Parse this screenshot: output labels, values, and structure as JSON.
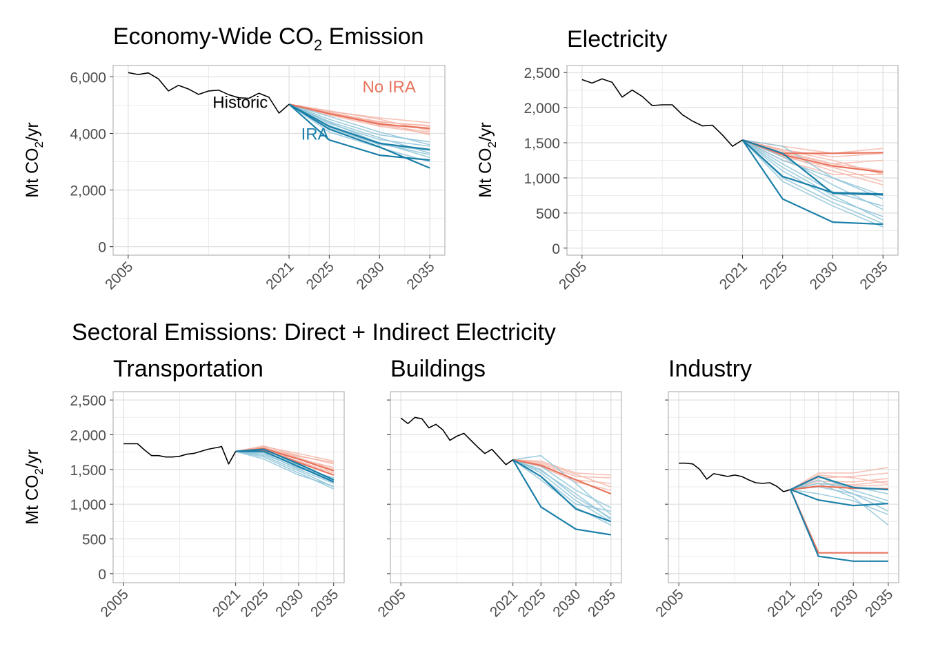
{
  "section_title": "Sectoral Emissions: Direct + Indirect Electricity",
  "colors": {
    "historic": "#000000",
    "ira": "#1a7fa8",
    "ira_light": "#8ec4d8",
    "noira": "#e8735c",
    "noira_light": "#f4b3a5",
    "grid": "#dedede",
    "panel_border": "#b3b3b3"
  },
  "chart_data": [
    {
      "type": "line",
      "title": "Economy-Wide CO",
      "title_subscript": "2",
      "title_suffix": " Emission",
      "ylabel_prefix": "Mt CO",
      "ylabel_subscript": "2",
      "ylabel_suffix": "/yr",
      "x_ticks": [
        2005,
        2021,
        2025,
        2030,
        2035
      ],
      "x_tick_labels": [
        "2005",
        "2021",
        "2025",
        "2030",
        "2035"
      ],
      "xlim": [
        2005,
        2035
      ],
      "ylim": [
        0,
        6000
      ],
      "y_ticks": [
        0,
        2000,
        4000,
        6000
      ],
      "y_tick_labels": [
        "0",
        "2,000",
        "4,000",
        "6,000"
      ],
      "grid": true,
      "annotations": [
        {
          "text": "No IRA",
          "series": "noira",
          "x": 2028.3,
          "y": 5450
        },
        {
          "text": "Historic",
          "series": "historic",
          "x": 2013.4,
          "y": 4900
        },
        {
          "text": "IRA",
          "series": "ira",
          "x": 2022.2,
          "y": 3780
        }
      ],
      "historic": {
        "x": [
          2005,
          2006,
          2007,
          2008,
          2009,
          2010,
          2011,
          2012,
          2013,
          2014,
          2015,
          2016,
          2017,
          2018,
          2019,
          2020,
          2021
        ],
        "y": [
          6150,
          6080,
          6140,
          5930,
          5500,
          5700,
          5570,
          5380,
          5500,
          5530,
          5370,
          5260,
          5240,
          5420,
          5280,
          4720,
          5030
        ]
      },
      "scenario_x": [
        2021,
        2025,
        2030,
        2035
      ],
      "noira": [
        [
          5030,
          4780,
          4550,
          4380
        ],
        [
          5030,
          4720,
          4420,
          4250
        ],
        [
          5030,
          4680,
          4350,
          4150
        ],
        [
          5030,
          4750,
          4400,
          4280
        ],
        [
          5030,
          4700,
          4300,
          4050
        ],
        [
          5030,
          4650,
          4250,
          4000
        ],
        [
          5030,
          4720,
          4380,
          3950
        ],
        [
          5030,
          4800,
          4500,
          4100
        ]
      ],
      "noira_bold": [
        5030,
        4700,
        4330,
        4180
      ],
      "ira": [
        [
          5030,
          4420,
          3850,
          3300
        ],
        [
          5030,
          4280,
          3680,
          3150
        ],
        [
          5030,
          4350,
          3780,
          3550
        ],
        [
          5030,
          4200,
          3600,
          3400
        ],
        [
          5030,
          4500,
          3950,
          3700
        ],
        [
          5030,
          4050,
          3500,
          3000
        ],
        [
          5030,
          4400,
          3650,
          3250
        ],
        [
          5030,
          4600,
          4050,
          3600
        ]
      ],
      "ira_bold": [
        [
          5030,
          3770,
          3230,
          3060
        ],
        [
          5030,
          4250,
          3650,
          3430
        ],
        [
          5030,
          4150,
          3520,
          2780
        ]
      ]
    },
    {
      "type": "line",
      "title": "Electricity",
      "ylabel_prefix": "Mt CO",
      "ylabel_subscript": "2",
      "ylabel_suffix": "/yr",
      "x_ticks": [
        2005,
        2021,
        2025,
        2030,
        2035
      ],
      "x_tick_labels": [
        "2005",
        "2021",
        "2025",
        "2030",
        "2035"
      ],
      "xlim": [
        2005,
        2035
      ],
      "ylim": [
        0,
        2500
      ],
      "y_ticks": [
        0,
        500,
        1000,
        1500,
        2000,
        2500
      ],
      "y_tick_labels": [
        "0",
        "500",
        "1,000",
        "1,500",
        "2,000",
        "2,500"
      ],
      "grid": true,
      "historic": {
        "x": [
          2005,
          2006,
          2007,
          2008,
          2009,
          2010,
          2011,
          2012,
          2013,
          2014,
          2015,
          2016,
          2017,
          2018,
          2019,
          2020,
          2021
        ],
        "y": [
          2400,
          2350,
          2410,
          2360,
          2150,
          2250,
          2160,
          2030,
          2040,
          2040,
          1900,
          1810,
          1740,
          1750,
          1610,
          1450,
          1540
        ]
      },
      "scenario_x": [
        2021,
        2025,
        2030,
        2035
      ],
      "noira": [
        [
          1540,
          1450,
          1350,
          1420
        ],
        [
          1540,
          1400,
          1300,
          1350
        ],
        [
          1540,
          1350,
          1200,
          1100
        ],
        [
          1540,
          1300,
          1150,
          950
        ],
        [
          1540,
          1400,
          1250,
          1050
        ],
        [
          1540,
          1320,
          1100,
          900
        ],
        [
          1540,
          1250,
          1050,
          1050
        ],
        [
          1540,
          1380,
          1200,
          1250
        ]
      ],
      "noira_bold": [
        [
          1540,
          1350,
          1350,
          1360
        ],
        [
          1540,
          1330,
          1170,
          1080
        ]
      ],
      "ira": [
        [
          1540,
          1100,
          700,
          450
        ],
        [
          1540,
          1200,
          800,
          600
        ],
        [
          1540,
          1300,
          900,
          550
        ],
        [
          1540,
          1000,
          650,
          350
        ],
        [
          1540,
          1150,
          750,
          400
        ],
        [
          1540,
          1250,
          1000,
          700
        ],
        [
          1540,
          1450,
          1000,
          750
        ],
        [
          1540,
          950,
          600,
          300
        ]
      ],
      "ira_bold": [
        [
          1540,
          700,
          370,
          340
        ],
        [
          1540,
          1020,
          790,
          770
        ],
        [
          1540,
          1350,
          780,
          760
        ]
      ]
    },
    {
      "type": "line",
      "title": "Transportation",
      "ylabel_prefix": "Mt CO",
      "ylabel_subscript": "2",
      "ylabel_suffix": "/yr",
      "x_ticks": [
        2005,
        2021,
        2025,
        2030,
        2035
      ],
      "x_tick_labels": [
        "2005",
        "2021",
        "2025",
        "2030",
        "2035"
      ],
      "xlim": [
        2005,
        2035
      ],
      "ylim": [
        0,
        2500
      ],
      "y_ticks": [
        0,
        500,
        1000,
        1500,
        2000,
        2500
      ],
      "y_tick_labels": [
        "0",
        "500",
        "1,000",
        "1,500",
        "2,000",
        "2,500"
      ],
      "grid": true,
      "historic": {
        "x": [
          2005,
          2006,
          2007,
          2008,
          2009,
          2010,
          2011,
          2012,
          2013,
          2014,
          2015,
          2016,
          2017,
          2018,
          2019,
          2020,
          2021
        ],
        "y": [
          1870,
          1870,
          1870,
          1780,
          1700,
          1700,
          1680,
          1680,
          1690,
          1720,
          1730,
          1760,
          1790,
          1810,
          1830,
          1580,
          1760
        ]
      },
      "scenario_x": [
        2021,
        2025,
        2030,
        2035
      ],
      "noira": [
        [
          1760,
          1830,
          1730,
          1620
        ],
        [
          1760,
          1810,
          1690,
          1600
        ],
        [
          1760,
          1780,
          1650,
          1530
        ],
        [
          1760,
          1840,
          1700,
          1580
        ],
        [
          1760,
          1790,
          1620,
          1450
        ],
        [
          1760,
          1820,
          1670,
          1500
        ]
      ],
      "noira_bold": [
        [
          1760,
          1800,
          1650,
          1480
        ],
        [
          1760,
          1780,
          1600,
          1420
        ]
      ],
      "ira": [
        [
          1760,
          1700,
          1480,
          1250
        ],
        [
          1760,
          1680,
          1450,
          1220
        ],
        [
          1760,
          1740,
          1500,
          1300
        ],
        [
          1760,
          1720,
          1520,
          1380
        ],
        [
          1760,
          1650,
          1420,
          1260
        ],
        [
          1760,
          1760,
          1560,
          1340
        ]
      ],
      "ira_bold": [
        [
          1760,
          1790,
          1580,
          1350
        ],
        [
          1760,
          1760,
          1540,
          1320
        ]
      ]
    },
    {
      "type": "line",
      "title": "Buildings",
      "x_ticks": [
        2005,
        2021,
        2025,
        2030,
        2035
      ],
      "x_tick_labels": [
        "2005",
        "2021",
        "2025",
        "2030",
        "2035"
      ],
      "xlim": [
        2005,
        2035
      ],
      "ylim": [
        0,
        2500
      ],
      "y_ticks": [
        0,
        500,
        1000,
        1500,
        2000,
        2500
      ],
      "grid": true,
      "historic": {
        "x": [
          2005,
          2006,
          2007,
          2008,
          2009,
          2010,
          2011,
          2012,
          2013,
          2014,
          2015,
          2016,
          2017,
          2018,
          2019,
          2020,
          2021
        ],
        "y": [
          2240,
          2160,
          2250,
          2230,
          2100,
          2150,
          2070,
          1920,
          1980,
          2020,
          1920,
          1820,
          1730,
          1790,
          1680,
          1570,
          1640
        ]
      },
      "scenario_x": [
        2021,
        2025,
        2030,
        2035
      ],
      "noira": [
        [
          1640,
          1620,
          1450,
          1420
        ],
        [
          1640,
          1580,
          1400,
          1380
        ],
        [
          1640,
          1560,
          1350,
          1300
        ],
        [
          1640,
          1600,
          1430,
          1250
        ],
        [
          1640,
          1540,
          1320,
          1200
        ]
      ],
      "noira_bold": [
        [
          1640,
          1560,
          1350,
          1150
        ]
      ],
      "ira": [
        [
          1640,
          1500,
          1100,
          800
        ],
        [
          1640,
          1450,
          1050,
          750
        ],
        [
          1640,
          1400,
          1000,
          900
        ],
        [
          1640,
          1550,
          1200,
          950
        ],
        [
          1640,
          1700,
          1300,
          850
        ],
        [
          1640,
          1350,
          950,
          700
        ],
        [
          1640,
          1480,
          1150,
          780
        ]
      ],
      "ira_bold": [
        [
          1640,
          960,
          640,
          560
        ],
        [
          1640,
          1400,
          930,
          750
        ]
      ]
    },
    {
      "type": "line",
      "title": "Industry",
      "x_ticks": [
        2005,
        2021,
        2025,
        2030,
        2035
      ],
      "x_tick_labels": [
        "2005",
        "2021",
        "2025",
        "2030",
        "2035"
      ],
      "xlim": [
        2005,
        2035
      ],
      "ylim": [
        0,
        2500
      ],
      "y_ticks": [
        0,
        500,
        1000,
        1500,
        2000,
        2500
      ],
      "grid": true,
      "historic": {
        "x": [
          2005,
          2006,
          2007,
          2008,
          2009,
          2010,
          2011,
          2012,
          2013,
          2014,
          2015,
          2016,
          2017,
          2018,
          2019,
          2020,
          2021
        ],
        "y": [
          1590,
          1590,
          1580,
          1500,
          1360,
          1440,
          1420,
          1400,
          1420,
          1400,
          1350,
          1310,
          1300,
          1310,
          1260,
          1180,
          1210
        ]
      },
      "scenario_x": [
        2021,
        2025,
        2030,
        2035
      ],
      "noira": [
        [
          1210,
          1450,
          1450,
          1530
        ],
        [
          1210,
          1380,
          1400,
          1450
        ],
        [
          1210,
          1330,
          1320,
          1370
        ],
        [
          1210,
          1300,
          1280,
          1330
        ],
        [
          1210,
          1420,
          1380,
          1300
        ],
        [
          1210,
          1250,
          1260,
          1280
        ]
      ],
      "noira_bold": [
        [
          1210,
          300,
          300,
          300
        ],
        [
          1210,
          1260,
          1230,
          1220
        ]
      ],
      "ira": [
        [
          1210,
          1350,
          1150,
          900
        ],
        [
          1210,
          1300,
          1100,
          700
        ],
        [
          1210,
          1400,
          1200,
          1050
        ],
        [
          1210,
          1250,
          1150,
          1000
        ],
        [
          1210,
          1300,
          1250,
          1150
        ],
        [
          1210,
          1150,
          1050,
          850
        ]
      ],
      "ira_bold": [
        [
          1210,
          250,
          180,
          180
        ],
        [
          1210,
          1060,
          980,
          1010
        ],
        [
          1210,
          1400,
          1240,
          1210
        ]
      ]
    }
  ]
}
